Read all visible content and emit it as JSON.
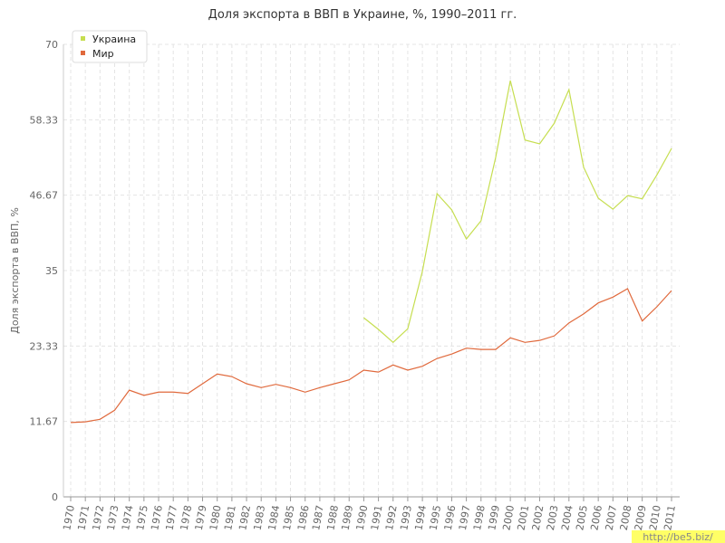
{
  "chart_data": {
    "type": "line",
    "title": "Доля экспорта в ВВП в Украине, %, 1990–2011 гг.",
    "y_label": "Доля экспорта в ВВП, %",
    "watermark": "http://be5.biz/",
    "categories": [
      "1970",
      "1971",
      "1972",
      "1973",
      "1974",
      "1975",
      "1976",
      "1977",
      "1978",
      "1979",
      "1980",
      "1981",
      "1982",
      "1983",
      "1984",
      "1985",
      "1986",
      "1987",
      "1988",
      "1989",
      "1990",
      "1991",
      "1992",
      "1993",
      "1994",
      "1995",
      "1996",
      "1997",
      "1998",
      "1999",
      "2000",
      "2001",
      "2002",
      "2003",
      "2004",
      "2005",
      "2006",
      "2007",
      "2008",
      "2009",
      "2010",
      "2011"
    ],
    "series": [
      {
        "name": "Украина",
        "color": "#c6de50",
        "values": [
          null,
          null,
          null,
          null,
          null,
          null,
          null,
          null,
          null,
          null,
          null,
          null,
          null,
          null,
          null,
          null,
          null,
          null,
          null,
          null,
          27.7,
          25.9,
          23.9,
          26.0,
          34.9,
          46.9,
          44.4,
          39.9,
          42.7,
          52.5,
          64.4,
          55.2,
          54.6,
          57.8,
          63.0,
          51.0,
          46.2,
          44.5,
          46.6,
          46.1,
          49.8,
          53.9
        ]
      },
      {
        "name": "Мир",
        "color": "#e0693c",
        "values": [
          11.5,
          11.6,
          12.0,
          13.4,
          16.5,
          15.7,
          16.2,
          16.2,
          16.0,
          17.5,
          19.0,
          18.6,
          17.5,
          16.9,
          17.4,
          16.9,
          16.2,
          16.9,
          17.5,
          18.1,
          19.6,
          19.3,
          20.4,
          19.6,
          20.2,
          21.4,
          22.1,
          23.0,
          22.8,
          22.8,
          24.6,
          23.9,
          24.2,
          24.9,
          26.9,
          28.3,
          30.0,
          30.9,
          32.2,
          27.2,
          29.4,
          31.9
        ]
      }
    ],
    "ylim": [
      0,
      70
    ],
    "yticks": [
      0,
      11.67,
      23.33,
      35,
      46.67,
      58.33,
      70
    ],
    "grid": true,
    "legend": "top-left"
  }
}
